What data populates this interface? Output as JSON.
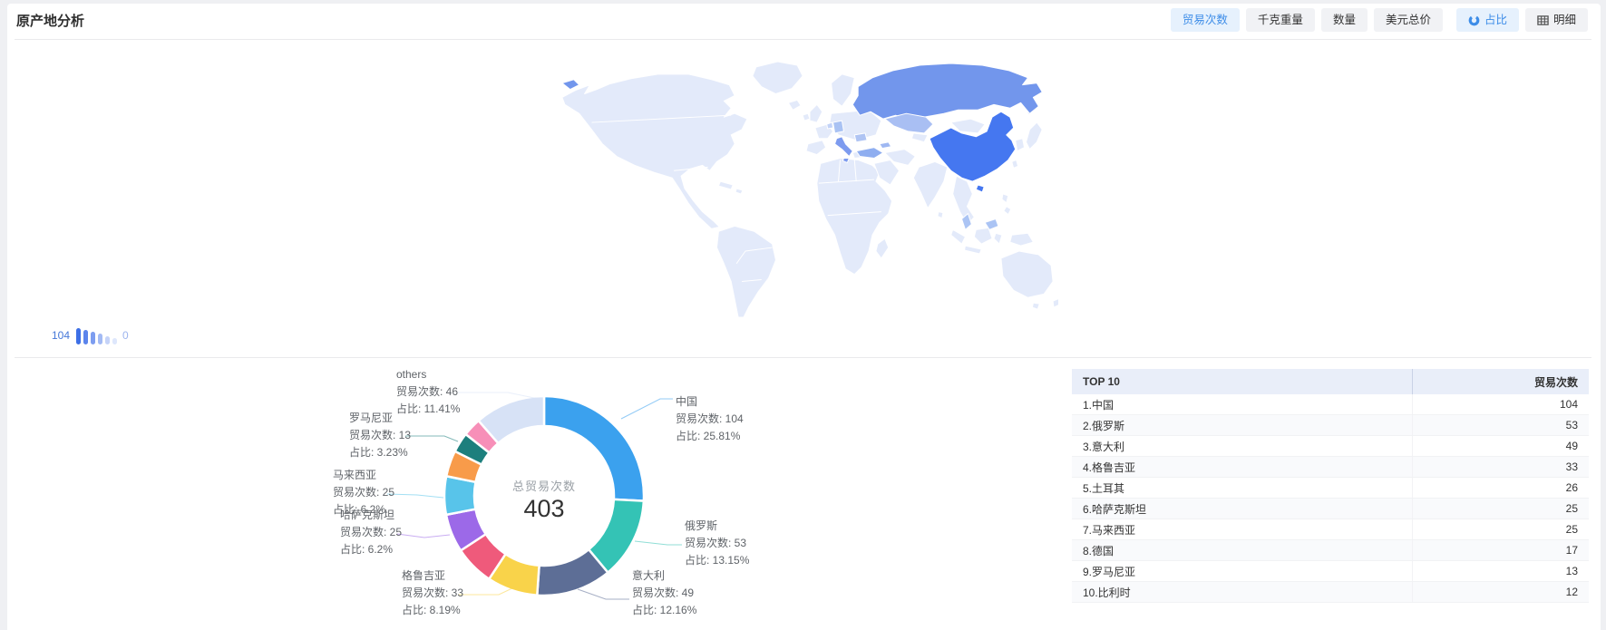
{
  "page": {
    "title": "原产地分析"
  },
  "toolbar": {
    "metric_buttons": [
      {
        "label": "贸易次数",
        "active": true
      },
      {
        "label": "千克重量",
        "active": false
      },
      {
        "label": "数量",
        "active": false
      },
      {
        "label": "美元总价",
        "active": false
      }
    ],
    "view_buttons": [
      {
        "label": "占比",
        "icon": "donut-icon",
        "active": true
      },
      {
        "label": "明细",
        "icon": "table-icon",
        "active": false
      }
    ],
    "accent_color": "#3d8de8"
  },
  "map": {
    "legend": {
      "max": "104",
      "min": "0"
    },
    "palette": {
      "base": "#e3eafa",
      "ru": "#7296ec",
      "cn": "#4577f0",
      "kz": "#a9bff3",
      "it": "#7d9bef",
      "tr": "#8faef0",
      "ge": "#9fb8f2",
      "de": "#a9c2f3",
      "ro": "#afc4f3",
      "be": "#c3d3f7",
      "my": "#abc4f4"
    }
  },
  "chart_data": {
    "type": "pie",
    "center_label": {
      "title": "总贸易次数",
      "value": "403"
    },
    "label_prefix_count": "贸易次数: ",
    "label_prefix_pct": "占比: ",
    "series": [
      {
        "name": "中国",
        "value": 104,
        "pct": "25.81%",
        "color": "#3ba1ee",
        "label_visible": true
      },
      {
        "name": "俄罗斯",
        "value": 53,
        "pct": "13.15%",
        "color": "#34c3b5",
        "label_visible": true
      },
      {
        "name": "意大利",
        "value": 49,
        "pct": "12.16%",
        "color": "#5d6e96",
        "label_visible": true
      },
      {
        "name": "格鲁吉亚",
        "value": 33,
        "pct": "8.19%",
        "color": "#f9d34a",
        "label_visible": true
      },
      {
        "name": "土耳其",
        "value": 26,
        "pct": "6.45%",
        "color": "#ef5a7b",
        "label_visible": false
      },
      {
        "name": "哈萨克斯坦",
        "value": 25,
        "pct": "6.2%",
        "color": "#9c69e8",
        "label_visible": true
      },
      {
        "name": "马来西亚",
        "value": 25,
        "pct": "6.2%",
        "color": "#58c4ea",
        "label_visible": true
      },
      {
        "name": "德国",
        "value": 17,
        "pct": "4.22%",
        "color": "#f89b4a",
        "label_visible": false
      },
      {
        "name": "罗马尼亚",
        "value": 13,
        "pct": "3.23%",
        "color": "#1d7f7d",
        "label_visible": true
      },
      {
        "name": "比利时",
        "value": 12,
        "pct": "2.98%",
        "color": "#f78fb8",
        "label_visible": false
      },
      {
        "name": "others",
        "value": 46,
        "pct": "11.41%",
        "color": "#d7e2f6",
        "label_visible": true
      }
    ]
  },
  "table": {
    "header": {
      "rank_col": "TOP 10",
      "value_col": "贸易次数"
    },
    "rows": [
      {
        "label": "1.中国",
        "value": "104"
      },
      {
        "label": "2.俄罗斯",
        "value": "53"
      },
      {
        "label": "3.意大利",
        "value": "49"
      },
      {
        "label": "4.格鲁吉亚",
        "value": "33"
      },
      {
        "label": "5.土耳其",
        "value": "26"
      },
      {
        "label": "6.哈萨克斯坦",
        "value": "25"
      },
      {
        "label": "7.马来西亚",
        "value": "25"
      },
      {
        "label": "8.德国",
        "value": "17"
      },
      {
        "label": "9.罗马尼亚",
        "value": "13"
      },
      {
        "label": "10.比利时",
        "value": "12"
      }
    ]
  }
}
